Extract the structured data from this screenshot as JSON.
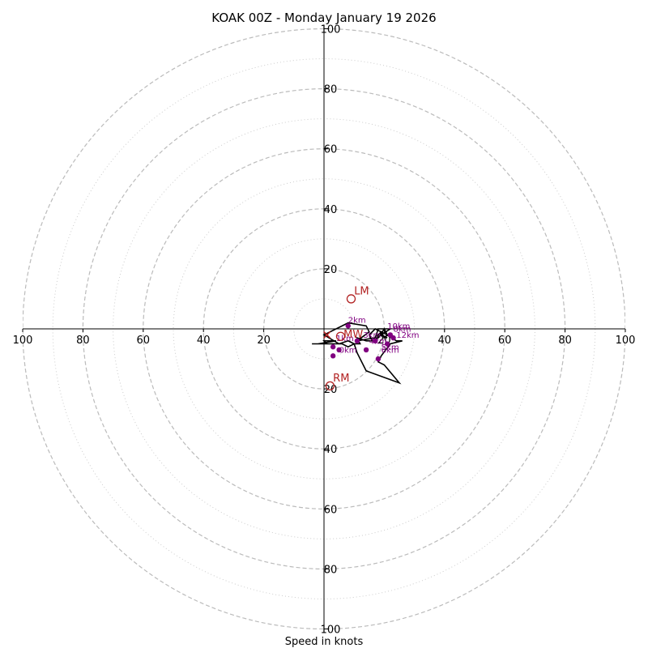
{
  "chart_data": {
    "type": "line",
    "title": "KOAK 00Z - Monday January 19 2026",
    "xlabel": "Speed in knots",
    "ylabel": "",
    "xlim": [
      -100,
      100
    ],
    "ylim": [
      -100,
      100
    ],
    "grid": true,
    "rings_major": [
      20,
      40,
      60,
      80,
      100
    ],
    "rings_minor": [
      10,
      30,
      50,
      70,
      90
    ],
    "ticks": {
      "top": [
        "20",
        "40",
        "60",
        "80",
        "100"
      ],
      "bottom": [
        "20",
        "40",
        "60",
        "80",
        "100"
      ],
      "left": [
        "100",
        "80",
        "60",
        "40",
        "20"
      ],
      "right": [
        "20",
        "40",
        "60",
        "80",
        "100"
      ]
    },
    "colors": {
      "trace": "#000000",
      "height_marker": "#800080",
      "motion": "#b22222",
      "grid": "#bbbbbb"
    },
    "series": [
      {
        "name": "hodograph",
        "u": [
          -4,
          1,
          0,
          4,
          -2,
          6,
          8,
          10,
          12,
          11,
          14,
          16,
          18,
          20,
          21,
          20,
          19,
          18,
          17,
          16,
          15,
          17,
          21,
          24,
          26,
          22,
          19,
          18,
          18,
          20,
          25,
          14,
          11,
          10,
          8,
          5,
          0,
          8,
          14,
          15,
          11,
          17,
          18,
          22,
          19,
          21
        ],
        "v": [
          -5,
          -5,
          -4,
          -4,
          -5,
          -5,
          -6,
          -5,
          -5,
          -3,
          -4,
          -4,
          -3,
          0,
          -2,
          -3,
          -1,
          -2,
          -4,
          -4,
          -2,
          0,
          -2,
          -4,
          -4,
          -5,
          -9,
          -11,
          -11,
          -12,
          -18,
          -14,
          -8,
          -5,
          -4,
          -5,
          -2,
          2,
          1,
          -1,
          -4,
          -3,
          0,
          0,
          -2,
          -3
        ]
      }
    ],
    "height_markers": [
      {
        "label": "",
        "u": 3,
        "v": -6
      },
      {
        "label": "",
        "u": 3,
        "v": -9
      },
      {
        "label": "",
        "u": 5,
        "v": -7
      },
      {
        "label": "",
        "u": 8,
        "v": 1
      },
      {
        "label": "",
        "u": 11,
        "v": -4
      },
      {
        "label": "",
        "u": 14,
        "v": -7
      },
      {
        "label": "",
        "u": 17,
        "v": -4
      },
      {
        "label": "",
        "u": 18,
        "v": -10
      },
      {
        "label": "",
        "u": 21,
        "v": -5
      },
      {
        "label": "",
        "u": 22,
        "v": -2
      },
      {
        "label": "",
        "u": 23,
        "v": -3
      }
    ],
    "height_labels": [
      {
        "label": "0km",
        "u": 5,
        "v": -8
      },
      {
        "label": "1km",
        "u": 4,
        "v": -4
      },
      {
        "label": "2km",
        "u": 8,
        "v": 2
      },
      {
        "label": "3km",
        "u": 13,
        "v": -3
      },
      {
        "label": "4km",
        "u": 15,
        "v": -5
      },
      {
        "label": "5km",
        "u": 19,
        "v": -7
      },
      {
        "label": "6km",
        "u": 19,
        "v": -8
      },
      {
        "label": "8km",
        "u": 23,
        "v": -1
      },
      {
        "label": "10km",
        "u": 21,
        "v": 0
      },
      {
        "label": "12km",
        "u": 24,
        "v": -3
      }
    ],
    "motion_points": [
      {
        "label": "LM",
        "u": 9,
        "v": 10,
        "label_du": 1,
        "label_dv": 1.5
      },
      {
        "label": "RM",
        "u": 2,
        "v": -19,
        "label_du": 1,
        "label_dv": 1.5
      },
      {
        "label": "MW",
        "u": 5.5,
        "v": -2.5,
        "label_du": 1,
        "label_dv": -0.5
      }
    ],
    "mean_wind_cross": {
      "u": 1,
      "v": -2
    }
  }
}
